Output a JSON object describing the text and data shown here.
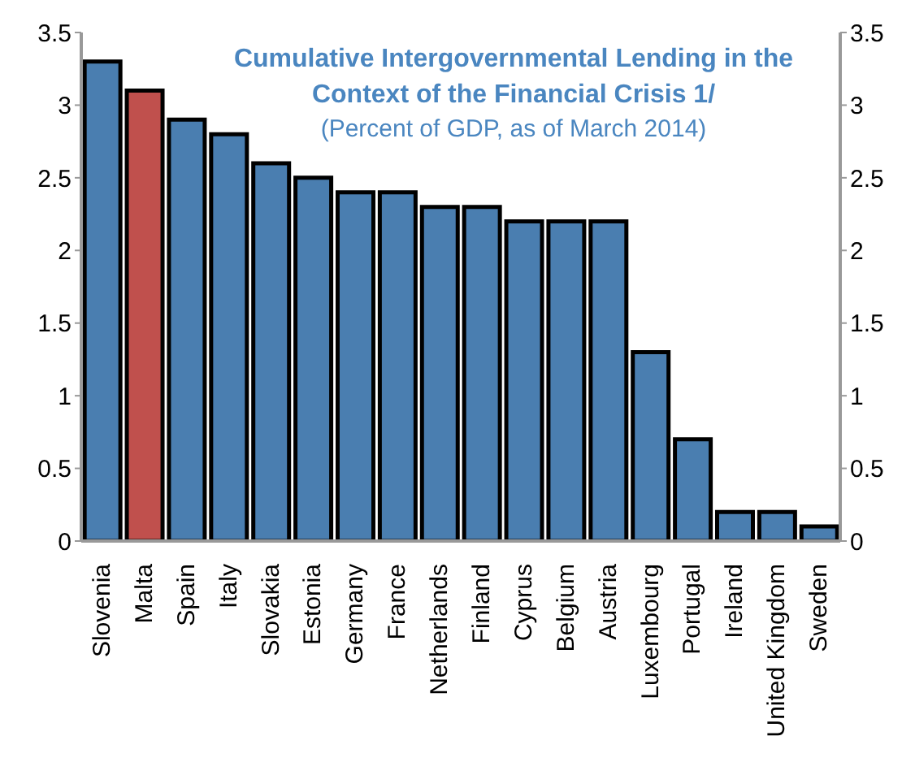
{
  "chart_data": {
    "type": "bar",
    "title": "Cumulative Intergovernmental Lending in the Context of the Financial Crisis 1/",
    "subtitle": "(Percent of GDP, as of March 2014)",
    "categories": [
      "Slovenia",
      "Malta",
      "Spain",
      "Italy",
      "Slovakia",
      "Estonia",
      "Germany",
      "France",
      "Netherlands",
      "Finland",
      "Cyprus",
      "Belgium",
      "Austria",
      "Luxembourg",
      "Portugal",
      "Ireland",
      "United Kingdom",
      "Sweden"
    ],
    "values": [
      3.3,
      3.1,
      2.9,
      2.8,
      2.6,
      2.5,
      2.4,
      2.4,
      2.3,
      2.3,
      2.2,
      2.2,
      2.2,
      1.3,
      0.7,
      0.2,
      0.2,
      0.1
    ],
    "colors": [
      "#4a7eb0",
      "#c0504d",
      "#4a7eb0",
      "#4a7eb0",
      "#4a7eb0",
      "#4a7eb0",
      "#4a7eb0",
      "#4a7eb0",
      "#4a7eb0",
      "#4a7eb0",
      "#4a7eb0",
      "#4a7eb0",
      "#4a7eb0",
      "#4a7eb0",
      "#4a7eb0",
      "#4a7eb0",
      "#4a7eb0",
      "#4a7eb0"
    ],
    "ylim": [
      0,
      3.5
    ],
    "yticks": [
      0,
      0.5,
      1,
      1.5,
      2,
      2.5,
      3,
      3.5
    ],
    "y2lim": [
      0,
      3.5
    ],
    "y2ticks": [
      0,
      0.5,
      1,
      1.5,
      2,
      2.5,
      3,
      3.5
    ],
    "grid": false,
    "legend": false
  }
}
